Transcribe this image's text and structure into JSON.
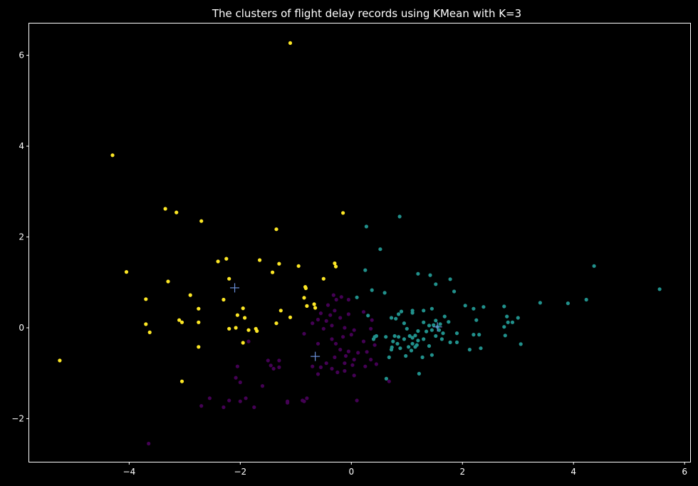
{
  "chart_data": {
    "type": "scatter",
    "title": "The clusters of flight delay records using KMean with K=3",
    "xlabel": "",
    "ylabel": "",
    "xlim": [
      -5.8,
      6.1
    ],
    "ylim": [
      -2.95,
      6.7
    ],
    "xticks": [
      -4,
      -2,
      0,
      2,
      4,
      6
    ],
    "yticks": [
      -2,
      0,
      2,
      4,
      6
    ],
    "xtick_labels": [
      "−4",
      "−2",
      "0",
      "2",
      "4",
      "6"
    ],
    "ytick_labels": [
      "−2",
      "0",
      "2",
      "4",
      "6"
    ],
    "grid": false,
    "legend": "none",
    "background": "#000000",
    "series": [
      {
        "color": "#fde725",
        "points": [
          [
            -1.1,
            6.27
          ],
          [
            -4.3,
            3.8
          ],
          [
            -3.35,
            2.62
          ],
          [
            -3.15,
            2.54
          ],
          [
            -2.7,
            2.35
          ],
          [
            -0.15,
            2.53
          ],
          [
            -1.35,
            2.17
          ],
          [
            -4.05,
            1.23
          ],
          [
            -2.25,
            1.52
          ],
          [
            -2.4,
            1.46
          ],
          [
            -1.65,
            1.49
          ],
          [
            -1.3,
            1.41
          ],
          [
            -0.3,
            1.42
          ],
          [
            -0.28,
            1.35
          ],
          [
            -0.95,
            1.36
          ],
          [
            -1.42,
            1.22
          ],
          [
            -2.2,
            1.08
          ],
          [
            -3.3,
            1.02
          ],
          [
            -0.5,
            1.08
          ],
          [
            -2.9,
            0.72
          ],
          [
            -3.7,
            0.63
          ],
          [
            -2.3,
            0.62
          ],
          [
            -0.85,
            0.66
          ],
          [
            -0.82,
            0.87
          ],
          [
            -0.83,
            0.9
          ],
          [
            -2.75,
            0.42
          ],
          [
            -1.95,
            0.43
          ],
          [
            -1.27,
            0.38
          ],
          [
            -0.8,
            0.48
          ],
          [
            -0.67,
            0.52
          ],
          [
            -0.65,
            0.44
          ],
          [
            -3.1,
            0.17
          ],
          [
            -3.05,
            0.12
          ],
          [
            -2.75,
            0.12
          ],
          [
            -2.05,
            0.28
          ],
          [
            -1.92,
            0.22
          ],
          [
            -1.35,
            0.1
          ],
          [
            -1.1,
            0.23
          ],
          [
            -3.7,
            0.08
          ],
          [
            -3.63,
            -0.1
          ],
          [
            -2.2,
            -0.02
          ],
          [
            -2.08,
            0.0
          ],
          [
            -1.85,
            -0.05
          ],
          [
            -1.72,
            -0.02
          ],
          [
            -1.7,
            -0.07
          ],
          [
            -1.95,
            -0.33
          ],
          [
            -2.75,
            -0.42
          ],
          [
            -5.25,
            -0.72
          ],
          [
            -3.05,
            -1.18
          ]
        ]
      },
      {
        "color": "#21918c",
        "points": [
          [
            0.87,
            2.45
          ],
          [
            0.27,
            2.23
          ],
          [
            0.52,
            1.73
          ],
          [
            4.37,
            1.36
          ],
          [
            0.25,
            1.27
          ],
          [
            1.2,
            1.19
          ],
          [
            1.42,
            1.16
          ],
          [
            1.78,
            1.07
          ],
          [
            1.52,
            0.96
          ],
          [
            5.55,
            0.85
          ],
          [
            0.37,
            0.83
          ],
          [
            1.85,
            0.8
          ],
          [
            0.6,
            0.77
          ],
          [
            0.1,
            0.67
          ],
          [
            4.23,
            0.62
          ],
          [
            3.4,
            0.55
          ],
          [
            3.9,
            0.54
          ],
          [
            2.05,
            0.49
          ],
          [
            2.38,
            0.46
          ],
          [
            2.75,
            0.47
          ],
          [
            2.2,
            0.42
          ],
          [
            1.45,
            0.42
          ],
          [
            1.1,
            0.38
          ],
          [
            1.3,
            0.38
          ],
          [
            0.85,
            0.3
          ],
          [
            0.9,
            0.36
          ],
          [
            1.1,
            0.33
          ],
          [
            0.3,
            0.27
          ],
          [
            0.72,
            0.22
          ],
          [
            1.68,
            0.25
          ],
          [
            2.8,
            0.25
          ],
          [
            3.0,
            0.22
          ],
          [
            0.8,
            0.2
          ],
          [
            1.3,
            0.12
          ],
          [
            1.52,
            0.16
          ],
          [
            1.75,
            0.13
          ],
          [
            2.25,
            0.17
          ],
          [
            2.82,
            0.12
          ],
          [
            2.9,
            0.12
          ],
          [
            0.95,
            0.1
          ],
          [
            1.6,
            0.08
          ],
          [
            2.75,
            0.02
          ],
          [
            1.4,
            0.05
          ],
          [
            1.55,
            0.02
          ],
          [
            1.48,
            0.06
          ],
          [
            1.0,
            -0.02
          ],
          [
            1.2,
            -0.07
          ],
          [
            1.35,
            -0.08
          ],
          [
            1.45,
            -0.05
          ],
          [
            1.58,
            -0.05
          ],
          [
            1.65,
            -0.12
          ],
          [
            1.9,
            -0.12
          ],
          [
            2.3,
            -0.15
          ],
          [
            2.2,
            -0.15
          ],
          [
            0.42,
            -0.2
          ],
          [
            0.45,
            -0.18
          ],
          [
            0.62,
            -0.2
          ],
          [
            0.78,
            -0.18
          ],
          [
            0.85,
            -0.2
          ],
          [
            1.05,
            -0.18
          ],
          [
            1.1,
            -0.22
          ],
          [
            1.15,
            -0.17
          ],
          [
            1.52,
            -0.18
          ],
          [
            1.63,
            -0.25
          ],
          [
            2.77,
            -0.17
          ],
          [
            0.4,
            -0.25
          ],
          [
            0.75,
            -0.3
          ],
          [
            0.95,
            -0.25
          ],
          [
            1.2,
            -0.28
          ],
          [
            1.3,
            -0.25
          ],
          [
            0.83,
            -0.35
          ],
          [
            1.1,
            -0.35
          ],
          [
            1.18,
            -0.38
          ],
          [
            1.78,
            -0.32
          ],
          [
            1.9,
            -0.32
          ],
          [
            3.05,
            -0.36
          ],
          [
            0.73,
            -0.43
          ],
          [
            1.03,
            -0.42
          ],
          [
            1.15,
            -0.42
          ],
          [
            1.4,
            -0.4
          ],
          [
            2.13,
            -0.48
          ],
          [
            2.33,
            -0.45
          ],
          [
            0.72,
            -0.48
          ],
          [
            0.88,
            -0.45
          ],
          [
            1.08,
            -0.5
          ],
          [
            1.45,
            -0.6
          ],
          [
            0.68,
            -0.65
          ],
          [
            0.98,
            -0.62
          ],
          [
            1.28,
            -0.65
          ],
          [
            1.22,
            -1.01
          ],
          [
            0.63,
            -1.12
          ]
        ]
      },
      {
        "color": "#440154",
        "points": [
          [
            -0.32,
            0.72
          ],
          [
            -0.18,
            0.68
          ],
          [
            -0.05,
            0.62
          ],
          [
            -0.27,
            0.62
          ],
          [
            -0.42,
            0.5
          ],
          [
            -0.3,
            0.38
          ],
          [
            0.22,
            0.35
          ],
          [
            -0.55,
            0.32
          ],
          [
            -0.38,
            0.28
          ],
          [
            -0.2,
            0.22
          ],
          [
            -0.6,
            0.18
          ],
          [
            -0.7,
            0.1
          ],
          [
            -0.45,
            0.15
          ],
          [
            -0.05,
            0.3
          ],
          [
            0.37,
            0.17
          ],
          [
            -0.35,
            0.05
          ],
          [
            0.05,
            -0.05
          ],
          [
            -0.12,
            0.0
          ],
          [
            -0.5,
            -0.02
          ],
          [
            -0.85,
            -0.13
          ],
          [
            0.35,
            -0.02
          ],
          [
            0.0,
            -0.15
          ],
          [
            -0.15,
            -0.2
          ],
          [
            -0.35,
            -0.25
          ],
          [
            -0.28,
            -0.35
          ],
          [
            0.22,
            -0.3
          ],
          [
            0.42,
            -0.38
          ],
          [
            -0.6,
            -0.35
          ],
          [
            -0.2,
            -0.48
          ],
          [
            -0.05,
            -0.52
          ],
          [
            0.12,
            -0.55
          ],
          [
            0.28,
            -0.53
          ],
          [
            -0.1,
            -0.62
          ],
          [
            0.05,
            -0.7
          ],
          [
            -0.3,
            -0.65
          ],
          [
            0.35,
            -0.7
          ],
          [
            -0.45,
            -0.78
          ],
          [
            -0.12,
            -0.78
          ],
          [
            0.02,
            -0.82
          ],
          [
            0.45,
            -0.8
          ],
          [
            0.25,
            -0.85
          ],
          [
            -0.55,
            -0.87
          ],
          [
            -0.35,
            -0.9
          ],
          [
            -0.12,
            -0.95
          ],
          [
            -0.7,
            -0.85
          ],
          [
            -1.5,
            -0.72
          ],
          [
            -1.3,
            -0.72
          ],
          [
            -2.05,
            -0.85
          ],
          [
            -1.45,
            -0.83
          ],
          [
            -1.4,
            -0.9
          ],
          [
            -1.3,
            -0.87
          ],
          [
            -0.6,
            -1.02
          ],
          [
            -0.25,
            -0.98
          ],
          [
            0.05,
            -1.05
          ],
          [
            0.68,
            -1.18
          ],
          [
            -2.08,
            -1.1
          ],
          [
            -2.0,
            -1.2
          ],
          [
            -1.6,
            -1.28
          ],
          [
            -1.9,
            -1.55
          ],
          [
            -2.2,
            -1.6
          ],
          [
            -2.55,
            -1.55
          ],
          [
            -1.15,
            -1.62
          ],
          [
            -1.15,
            -1.65
          ],
          [
            -0.88,
            -1.6
          ],
          [
            -0.85,
            -1.62
          ],
          [
            -0.8,
            -1.55
          ],
          [
            0.1,
            -1.6
          ],
          [
            -2.3,
            -1.75
          ],
          [
            -2.7,
            -1.72
          ],
          [
            -2.0,
            -1.62
          ],
          [
            -1.75,
            -1.75
          ],
          [
            -3.65,
            -2.55
          ],
          [
            -1.85,
            -0.3
          ]
        ]
      }
    ],
    "centroids": {
      "color": "#6a8fd8",
      "marker": "+",
      "points": [
        [
          -2.1,
          0.88
        ],
        [
          -0.65,
          -0.63
        ],
        [
          1.55,
          0.02
        ]
      ]
    }
  }
}
